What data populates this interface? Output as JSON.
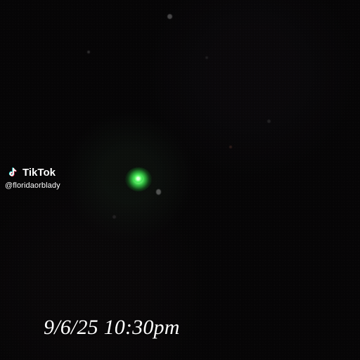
{
  "watermark": {
    "brand": "TikTok",
    "handle": "@floridaorblady",
    "icon": "tiktok-icon"
  },
  "caption": {
    "datetime": "9/6/25 10:30pm"
  },
  "scene": {
    "background_color": "#060506",
    "orb_color": "#5cff68"
  }
}
